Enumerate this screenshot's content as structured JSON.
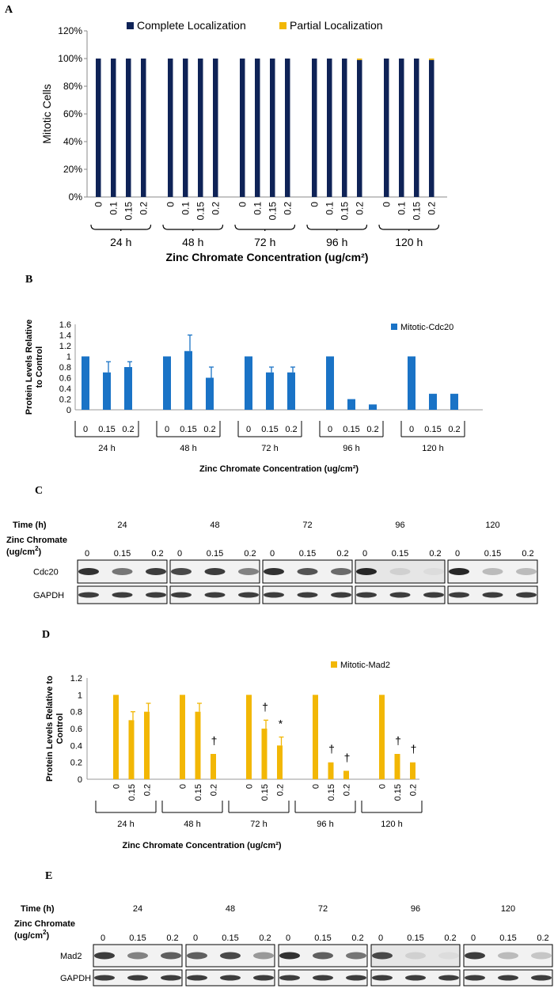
{
  "panels": {
    "a": "A",
    "b": "B",
    "c": "C",
    "d": "D",
    "e": "E"
  },
  "chart_data": [
    {
      "id": "A",
      "type": "bar",
      "title": "",
      "ylabel": "Mitotic Cells",
      "xlabel": "Zinc Chromate Concentration (ug/cm²)",
      "ylim": [
        0,
        120
      ],
      "yticks": [
        "0%",
        "20%",
        "40%",
        "60%",
        "80%",
        "100%",
        "120%"
      ],
      "legend_position": "top",
      "groups": [
        "24 h",
        "48 h",
        "72 h",
        "96 h",
        "120 h"
      ],
      "categories": [
        "0",
        "0.1",
        "0.15",
        "0.2"
      ],
      "series": [
        {
          "name": "Complete Localization",
          "color": "#0f2357",
          "values": [
            [
              100,
              100,
              100,
              100
            ],
            [
              100,
              100,
              100,
              100
            ],
            [
              100,
              100,
              100,
              100
            ],
            [
              100,
              100,
              100,
              99
            ],
            [
              100,
              100,
              100,
              99
            ]
          ]
        },
        {
          "name": "Partial Localization",
          "color": "#f2b705",
          "values": [
            [
              0,
              0,
              0,
              0
            ],
            [
              0,
              0,
              0,
              0
            ],
            [
              0,
              0,
              0,
              0
            ],
            [
              0,
              0,
              0,
              1
            ],
            [
              0,
              0,
              0,
              1
            ]
          ]
        }
      ]
    },
    {
      "id": "B",
      "type": "bar",
      "title": "",
      "ylabel": "Protein Levels Relative to Control",
      "xlabel": "Zinc Chromate Concentration (ug/cm²)",
      "ylim": [
        0,
        1.6
      ],
      "yticks": [
        "0",
        "0.2",
        "0.4",
        "0.6",
        "0.8",
        "1",
        "1.2",
        "1.4",
        "1.6"
      ],
      "legend_position": "top-right",
      "groups": [
        "24 h",
        "48 h",
        "72 h",
        "96 h",
        "120 h"
      ],
      "categories": [
        "0",
        "0.15",
        "0.2"
      ],
      "series": [
        {
          "name": "Mitotic-Cdc20",
          "color": "#1a73c6",
          "values": [
            [
              1,
              0.7,
              0.8
            ],
            [
              1,
              1.1,
              0.6
            ],
            [
              1,
              0.7,
              0.7
            ],
            [
              1,
              0.2,
              0.1
            ],
            [
              1,
              0.3,
              0.3
            ]
          ],
          "errors": [
            [
              0,
              0.2,
              0.1
            ],
            [
              0,
              0.3,
              0.2
            ],
            [
              0,
              0.1,
              0.1
            ],
            [
              0,
              0,
              0
            ],
            [
              0,
              0,
              0
            ]
          ]
        }
      ]
    },
    {
      "id": "D",
      "type": "bar",
      "title": "",
      "ylabel": "Protein Levels Relative to Control",
      "xlabel": "Zinc Chromate Concentration (ug/cm²)",
      "ylim": [
        0,
        1.2
      ],
      "yticks": [
        "0",
        "0.2",
        "0.4",
        "0.6",
        "0.8",
        "1",
        "1.2"
      ],
      "legend_position": "top-right",
      "groups": [
        "24 h",
        "48 h",
        "72 h",
        "96 h",
        "120 h"
      ],
      "categories": [
        "0",
        "0.15",
        "0.2"
      ],
      "series": [
        {
          "name": "Mitotic-Mad2",
          "color": "#f2b705",
          "values": [
            [
              1,
              0.7,
              0.8
            ],
            [
              1,
              0.8,
              0.3
            ],
            [
              1,
              0.6,
              0.4
            ],
            [
              1,
              0.2,
              0.1
            ],
            [
              1,
              0.3,
              0.2
            ]
          ],
          "errors": [
            [
              0,
              0.1,
              0.1
            ],
            [
              0,
              0.1,
              0
            ],
            [
              0,
              0.1,
              0.1
            ],
            [
              0,
              0,
              0
            ],
            [
              0,
              0,
              0
            ]
          ],
          "marks": [
            [
              "",
              "",
              ""
            ],
            [
              "",
              "",
              "†"
            ],
            [
              "",
              "†",
              "*"
            ],
            [
              "",
              "†",
              "†"
            ],
            [
              "",
              "†",
              "†"
            ]
          ]
        }
      ]
    }
  ],
  "blots": [
    {
      "id": "C",
      "time_label": "Time (h)",
      "zinc_label_1": "Zinc Chromate",
      "zinc_label_2": "(ug/cm",
      "zinc_sup": "2",
      "zinc_label_3": ")",
      "times": [
        "24",
        "48",
        "72",
        "96",
        "120"
      ],
      "concs": [
        "0",
        "0.15",
        "0.2"
      ],
      "rows": [
        "Cdc20",
        "GAPDH"
      ],
      "intensity": [
        [
          [
            0.9,
            0.6,
            0.85
          ],
          [
            0.8,
            0.85,
            0.55
          ],
          [
            0.9,
            0.75,
            0.65
          ],
          [
            0.95,
            0.2,
            0.15
          ],
          [
            0.95,
            0.3,
            0.3
          ]
        ],
        [
          [
            0.85,
            0.85,
            0.85
          ],
          [
            0.85,
            0.85,
            0.85
          ],
          [
            0.85,
            0.85,
            0.85
          ],
          [
            0.85,
            0.85,
            0.85
          ],
          [
            0.85,
            0.85,
            0.85
          ]
        ]
      ]
    },
    {
      "id": "E",
      "time_label": "Time (h)",
      "zinc_label_1": "Zinc Chromate",
      "zinc_label_2": "(ug/cm",
      "zinc_sup": "2",
      "zinc_label_3": ")",
      "times": [
        "24",
        "48",
        "72",
        "96",
        "120"
      ],
      "concs": [
        "0",
        "0.15",
        "0.2"
      ],
      "rows": [
        "Mad2",
        "GAPDH"
      ],
      "intensity": [
        [
          [
            0.85,
            0.55,
            0.7
          ],
          [
            0.7,
            0.8,
            0.45
          ],
          [
            0.9,
            0.7,
            0.6
          ],
          [
            0.8,
            0.2,
            0.15
          ],
          [
            0.85,
            0.3,
            0.25
          ]
        ],
        [
          [
            0.85,
            0.85,
            0.85
          ],
          [
            0.85,
            0.85,
            0.85
          ],
          [
            0.85,
            0.85,
            0.85
          ],
          [
            0.85,
            0.85,
            0.85
          ],
          [
            0.85,
            0.85,
            0.85
          ]
        ]
      ]
    }
  ]
}
